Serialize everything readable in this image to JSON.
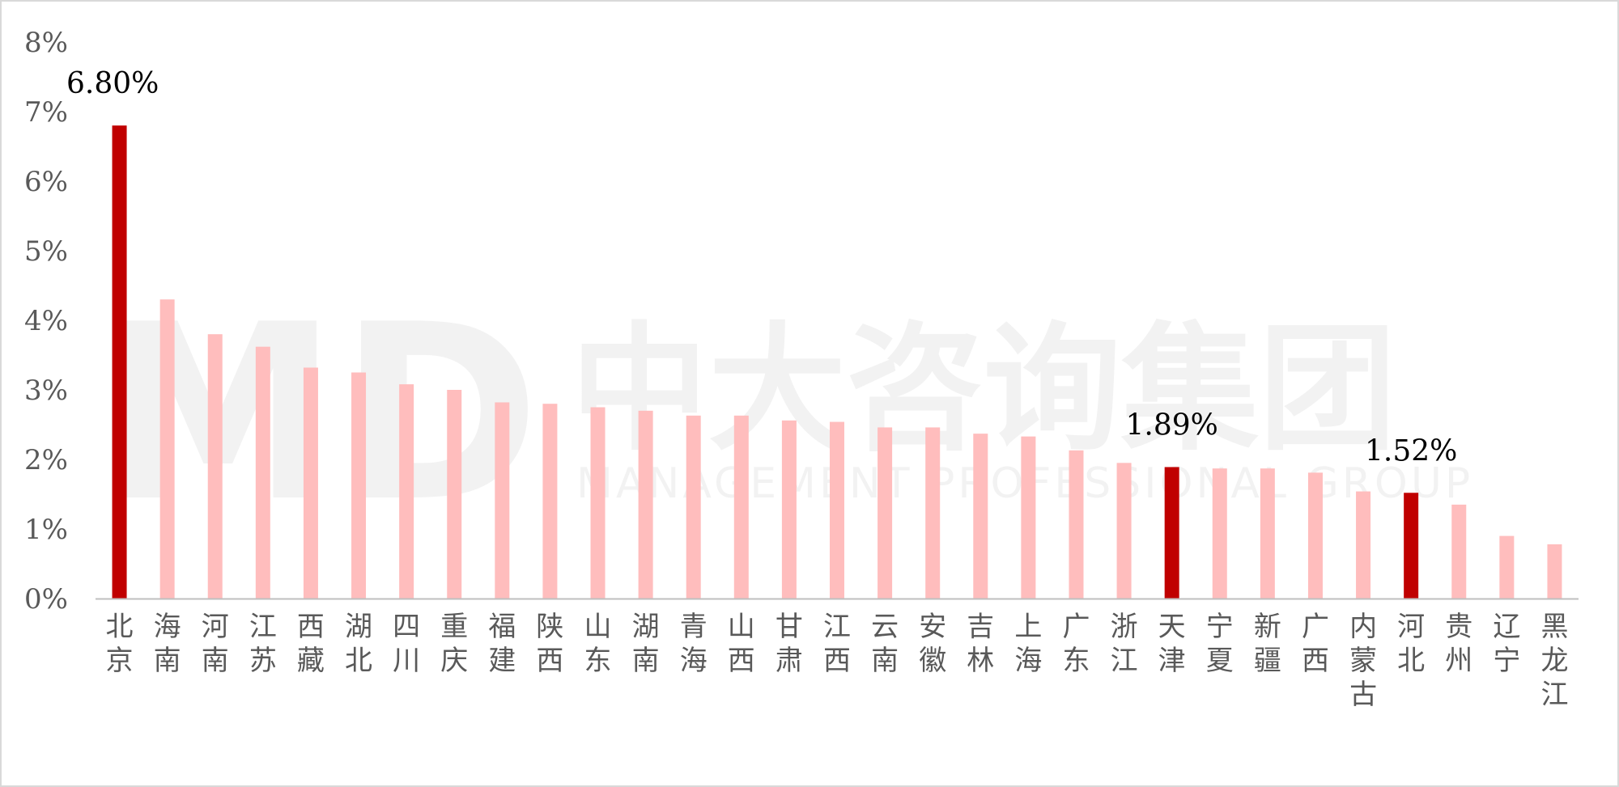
{
  "watermark": {
    "logo": "MD",
    "name": "中大咨询集团",
    "tagline": "MANAGEMENT PROFESSIONAL GROUP"
  },
  "colors": {
    "highlight": "#C00000",
    "normal": "#FFBDBD",
    "axis": "#bfbfbf",
    "tick_text": "#595959"
  },
  "chart_data": {
    "type": "bar",
    "title": "",
    "xlabel": "",
    "ylabel": "",
    "ylim": [
      0,
      8
    ],
    "yticks": [
      "0%",
      "1%",
      "2%",
      "3%",
      "4%",
      "5%",
      "6%",
      "7%",
      "8%"
    ],
    "grid": false,
    "categories": [
      "北京",
      "海南",
      "河南",
      "江苏",
      "西藏",
      "湖北",
      "四川",
      "重庆",
      "福建",
      "陕西",
      "山东",
      "湖南",
      "青海",
      "山西",
      "甘肃",
      "江西",
      "云南",
      "安徽",
      "吉林",
      "上海",
      "广东",
      "浙江",
      "天津",
      "宁夏",
      "新疆",
      "广西",
      "内蒙古",
      "河北",
      "贵州",
      "辽宁",
      "黑龙江"
    ],
    "values": [
      6.8,
      4.3,
      3.8,
      3.62,
      3.32,
      3.25,
      3.08,
      3.0,
      2.82,
      2.8,
      2.75,
      2.7,
      2.63,
      2.63,
      2.56,
      2.54,
      2.46,
      2.46,
      2.37,
      2.33,
      2.13,
      1.95,
      1.89,
      1.87,
      1.87,
      1.81,
      1.54,
      1.52,
      1.35,
      0.9,
      0.78
    ],
    "highlighted": [
      "北京",
      "天津",
      "河北"
    ],
    "data_labels": [
      {
        "category": "北京",
        "text": "6.80%"
      },
      {
        "category": "天津",
        "text": "1.89%"
      },
      {
        "category": "河北",
        "text": "1.52%"
      }
    ]
  }
}
